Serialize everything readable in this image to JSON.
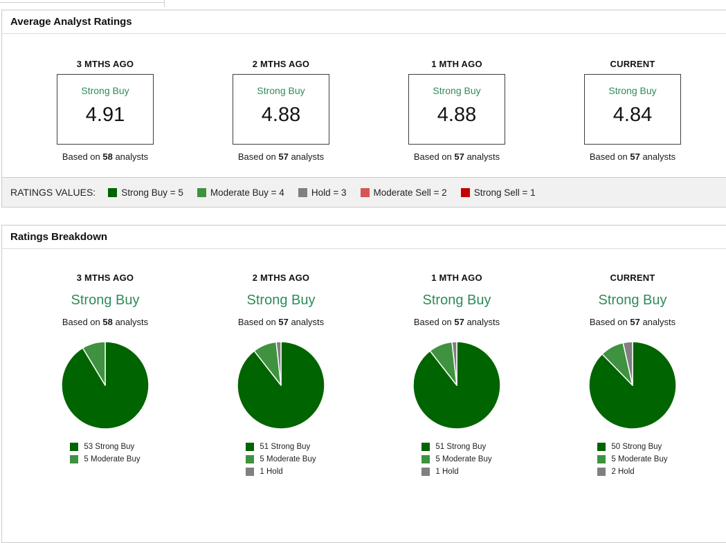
{
  "colors": {
    "strong_buy": "#006400",
    "moderate_buy": "#3f923f",
    "hold": "#808080",
    "moderate_sell": "#d65454",
    "strong_sell": "#c40000",
    "accent_green": "#2e8b57"
  },
  "average_ratings": {
    "title": "Average Analyst Ratings",
    "periods": [
      {
        "label": "3 MTHS AGO",
        "rating": "Strong Buy",
        "value": "4.91",
        "based_on_prefix": "Based on",
        "analyst_count": "58",
        "based_on_suffix": "analysts"
      },
      {
        "label": "2 MTHS AGO",
        "rating": "Strong Buy",
        "value": "4.88",
        "based_on_prefix": "Based on",
        "analyst_count": "57",
        "based_on_suffix": "analysts"
      },
      {
        "label": "1 MTH AGO",
        "rating": "Strong Buy",
        "value": "4.88",
        "based_on_prefix": "Based on",
        "analyst_count": "57",
        "based_on_suffix": "analysts"
      },
      {
        "label": "CURRENT",
        "rating": "Strong Buy",
        "value": "4.84",
        "based_on_prefix": "Based on",
        "analyst_count": "57",
        "based_on_suffix": "analysts"
      }
    ]
  },
  "ratings_values_legend": {
    "label": "RATINGS VALUES:",
    "items": [
      {
        "label": "Strong Buy = 5",
        "color": "#006400"
      },
      {
        "label": "Moderate Buy = 4",
        "color": "#3f923f"
      },
      {
        "label": "Hold = 3",
        "color": "#808080"
      },
      {
        "label": "Moderate Sell = 2",
        "color": "#d65454"
      },
      {
        "label": "Strong Sell = 1",
        "color": "#c40000"
      }
    ]
  },
  "ratings_breakdown": {
    "title": "Ratings Breakdown",
    "periods": [
      {
        "label": "3 MTHS AGO",
        "rating": "Strong Buy",
        "based_on_prefix": "Based on",
        "analyst_count": "58",
        "based_on_suffix": "analysts"
      },
      {
        "label": "2 MTHS AGO",
        "rating": "Strong Buy",
        "based_on_prefix": "Based on",
        "analyst_count": "57",
        "based_on_suffix": "analysts"
      },
      {
        "label": "1 MTH AGO",
        "rating": "Strong Buy",
        "based_on_prefix": "Based on",
        "analyst_count": "57",
        "based_on_suffix": "analysts"
      },
      {
        "label": "CURRENT",
        "rating": "Strong Buy",
        "based_on_prefix": "Based on",
        "analyst_count": "57",
        "based_on_suffix": "analysts"
      }
    ]
  },
  "chart_data": [
    {
      "type": "pie",
      "title": "3 MTHS AGO ratings breakdown",
      "total_analysts": 58,
      "legend_position": "bottom",
      "slices": [
        {
          "label": "53 Strong Buy",
          "value": 53,
          "color": "#006400"
        },
        {
          "label": "5 Moderate Buy",
          "value": 5,
          "color": "#3f923f"
        }
      ]
    },
    {
      "type": "pie",
      "title": "2 MTHS AGO ratings breakdown",
      "total_analysts": 57,
      "legend_position": "bottom",
      "slices": [
        {
          "label": "51 Strong Buy",
          "value": 51,
          "color": "#006400"
        },
        {
          "label": "5 Moderate Buy",
          "value": 5,
          "color": "#3f923f"
        },
        {
          "label": "1 Hold",
          "value": 1,
          "color": "#808080"
        }
      ]
    },
    {
      "type": "pie",
      "title": "1 MTH AGO ratings breakdown",
      "total_analysts": 57,
      "legend_position": "bottom",
      "slices": [
        {
          "label": "51 Strong Buy",
          "value": 51,
          "color": "#006400"
        },
        {
          "label": "5 Moderate Buy",
          "value": 5,
          "color": "#3f923f"
        },
        {
          "label": "1 Hold",
          "value": 1,
          "color": "#808080"
        }
      ]
    },
    {
      "type": "pie",
      "title": "CURRENT ratings breakdown",
      "total_analysts": 57,
      "legend_position": "bottom",
      "slices": [
        {
          "label": "50 Strong Buy",
          "value": 50,
          "color": "#006400"
        },
        {
          "label": "5 Moderate Buy",
          "value": 5,
          "color": "#3f923f"
        },
        {
          "label": "2 Hold",
          "value": 2,
          "color": "#808080"
        }
      ]
    }
  ]
}
